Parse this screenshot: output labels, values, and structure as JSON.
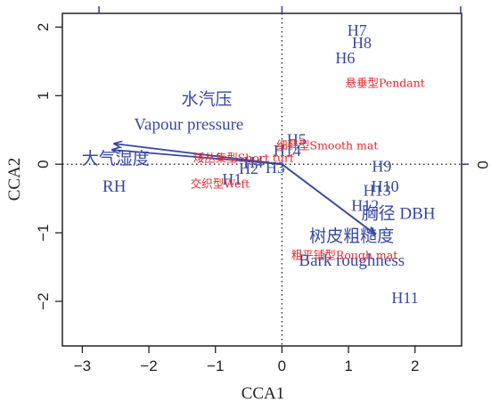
{
  "chart_data": {
    "type": "scatter",
    "title": "",
    "xlabel": "CCA1",
    "ylabel": "CCA2",
    "right_axis_label": "0",
    "xlim": [
      -3.3,
      2.7
    ],
    "ylim": [
      -2.65,
      2.2
    ],
    "xticks": [
      -3,
      -2,
      -1,
      0,
      1,
      2
    ],
    "yticks": [
      -2,
      -1,
      0,
      1,
      2
    ],
    "grid": false,
    "zero_lines": "dotted",
    "colors": {
      "sites": "#3848a4",
      "traits": "#e8262b",
      "arrows": "#3848a4",
      "axis": "#222222"
    },
    "sites": [
      {
        "label": "H7",
        "x": 1.13,
        "y": 1.95
      },
      {
        "label": "H8",
        "x": 1.2,
        "y": 1.77
      },
      {
        "label": "H6",
        "x": 0.95,
        "y": 1.55
      },
      {
        "label": "H5",
        "x": 0.22,
        "y": 0.36
      },
      {
        "label": "H14",
        "x": 0.08,
        "y": 0.2
      },
      {
        "label": "H4",
        "x": -0.43,
        "y": 0.03
      },
      {
        "label": "H3",
        "x": -0.1,
        "y": -0.05
      },
      {
        "label": "H2",
        "x": -0.5,
        "y": -0.06
      },
      {
        "label": "H1",
        "x": -0.75,
        "y": -0.22
      },
      {
        "label": "H9",
        "x": 1.5,
        "y": -0.03
      },
      {
        "label": "H10",
        "x": 1.55,
        "y": -0.32
      },
      {
        "label": "H13",
        "x": 1.43,
        "y": -0.38
      },
      {
        "label": "H12",
        "x": 1.25,
        "y": -0.6
      },
      {
        "label": "H11",
        "x": 1.85,
        "y": -1.95
      }
    ],
    "traits": [
      {
        "label": "悬垂型Pendant",
        "x": 1.55,
        "y": 1.18
      },
      {
        "label": "细藓型Smooth mat",
        "x": 0.68,
        "y": 0.27
      },
      {
        "label": "矮丛集型Short turf",
        "x": -0.58,
        "y": 0.09
      },
      {
        "label": "交织型Weft",
        "x": -0.93,
        "y": -0.29
      },
      {
        "label": "粗平铺型Rough mat",
        "x": 0.94,
        "y": -1.33
      }
    ],
    "env_vectors": [
      {
        "label_cn": "水汽压",
        "label_en": "Vapour pressure",
        "x": -2.52,
        "y": 0.3
      },
      {
        "label_cn": "大气湿度",
        "label_en": "RH",
        "x": -2.55,
        "y": 0.21
      },
      {
        "label_cn": "胸径",
        "label_en": "DBH",
        "x": 1.4,
        "y": -1.02
      },
      {
        "label_cn": "树皮粗糙度",
        "label_en": "Bark roughness",
        "x": 1.4,
        "y": -1.02
      }
    ],
    "env_label_positions": [
      {
        "text": "水汽压",
        "x": -1.13,
        "y": 0.87,
        "size": 19
      },
      {
        "text": "Vapour pressure",
        "x": -1.4,
        "y": 0.5,
        "size": 19
      },
      {
        "text": "大气湿度",
        "x": -2.5,
        "y": 0.0,
        "size": 19
      },
      {
        "text": "RH",
        "x": -2.52,
        "y": -0.4,
        "size": 19
      },
      {
        "text": "胸径 DBH",
        "x": 1.75,
        "y": -0.8,
        "size": 19
      },
      {
        "text": "树皮粗糙度",
        "x": 1.05,
        "y": -1.13,
        "size": 19
      },
      {
        "text": "Bark roughness",
        "x": 1.05,
        "y": -1.48,
        "size": 19
      }
    ]
  }
}
